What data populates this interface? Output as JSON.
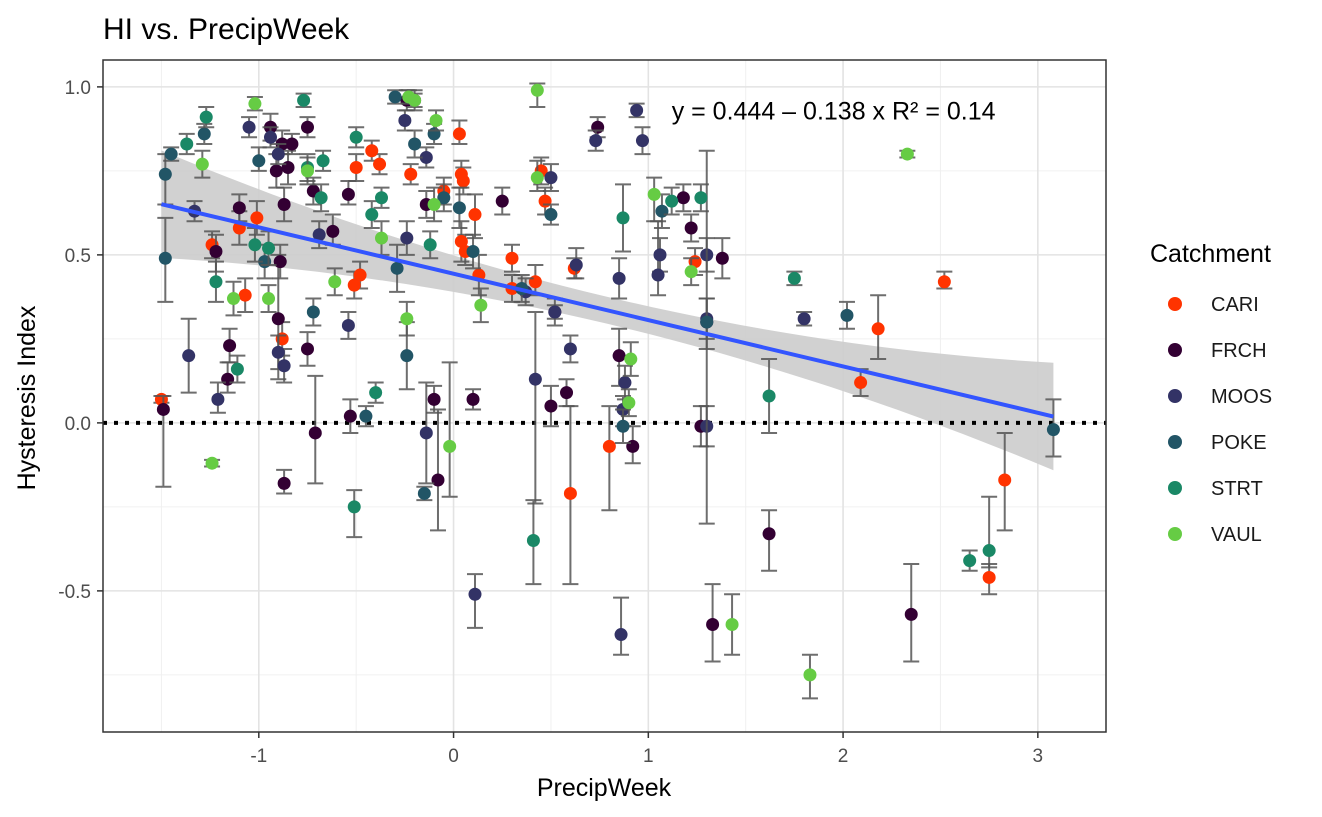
{
  "chart_data": {
    "type": "scatter",
    "title": "HI vs. PrecipWeek",
    "xlabel": "PrecipWeek",
    "ylabel": "Hysteresis Index",
    "xlim": [
      -1.8,
      3.35
    ],
    "ylim": [
      -0.92,
      1.08
    ],
    "x_ticks": [
      -1,
      0,
      1,
      2,
      3
    ],
    "x_tick_labels": [
      "-1",
      "0",
      "1",
      "2",
      "3"
    ],
    "y_ticks": [
      -0.5,
      0.0,
      0.5,
      1.0
    ],
    "y_tick_labels": [
      "-0.5",
      "0.0",
      "0.5",
      "1.0"
    ],
    "grid": true,
    "legend_position": "right",
    "legend_title": "Catchment",
    "reference_line": {
      "y": 0,
      "style": "dotted"
    },
    "regression": {
      "intercept": 0.444,
      "slope": -0.138,
      "x_range": [
        -1.5,
        3.08
      ],
      "band_halfwidth_ends": [
        0.16,
        0.16
      ],
      "band_halfwidth_center": 0.04,
      "color": "#3355ff",
      "band_color": "#cccccc",
      "equation_text": "y = 0.444 – 0.138 x",
      "r2_text": "R² = 0.14",
      "eq_anchor": {
        "x": 1.12,
        "y": 0.93
      }
    },
    "series": [
      {
        "name": "CARI",
        "color": "#ff3300",
        "points": [
          [
            -1.5,
            0.07,
            0.08,
            0.06
          ],
          [
            0.03,
            0.86,
            0.9,
            0.83
          ],
          [
            -0.5,
            0.76,
            0.8,
            0.72
          ],
          [
            -0.42,
            0.81,
            0.84,
            0.78
          ],
          [
            -0.38,
            0.77,
            0.8,
            0.74
          ],
          [
            -0.22,
            0.74,
            0.77,
            0.71
          ],
          [
            -0.05,
            0.69,
            0.73,
            0.65
          ],
          [
            0.04,
            0.74,
            0.78,
            0.7
          ],
          [
            0.05,
            0.72,
            0.76,
            0.68
          ],
          [
            0.11,
            0.62,
            0.68,
            0.55
          ],
          [
            0.04,
            0.54,
            0.6,
            0.48
          ],
          [
            0.06,
            0.51,
            0.56,
            0.47
          ],
          [
            0.13,
            0.44,
            0.5,
            0.38
          ],
          [
            -0.48,
            0.44,
            0.48,
            0.4
          ],
          [
            -0.51,
            0.41,
            0.45,
            0.37
          ],
          [
            -1.24,
            0.53,
            0.57,
            0.49
          ],
          [
            -1.1,
            0.58,
            0.63,
            0.53
          ],
          [
            -1.01,
            0.61,
            0.66,
            0.56
          ],
          [
            -1.07,
            0.38,
            0.43,
            0.33
          ],
          [
            -0.88,
            0.25,
            0.3,
            0.2
          ],
          [
            0.3,
            0.49,
            0.53,
            0.45
          ],
          [
            0.3,
            0.4,
            0.44,
            0.36
          ],
          [
            0.42,
            0.42,
            0.47,
            0.38
          ],
          [
            0.45,
            0.75,
            0.79,
            0.71
          ],
          [
            0.47,
            0.66,
            0.7,
            0.62
          ],
          [
            0.62,
            0.46,
            0.49,
            0.43
          ],
          [
            0.6,
            -0.21,
            0.05,
            -0.48
          ],
          [
            0.8,
            -0.07,
            0.05,
            -0.26
          ],
          [
            1.24,
            0.48,
            0.52,
            0.44
          ],
          [
            2.09,
            0.12,
            0.16,
            0.08
          ],
          [
            2.18,
            0.28,
            0.38,
            0.19
          ],
          [
            2.52,
            0.42,
            0.45,
            0.4
          ],
          [
            2.75,
            -0.46,
            -0.42,
            -0.51
          ],
          [
            2.83,
            -0.17,
            -0.03,
            -0.32
          ]
        ]
      },
      {
        "name": "FRCH",
        "color": "#330033",
        "points": [
          [
            -1.49,
            0.04,
            0.08,
            -0.19
          ],
          [
            -1.22,
            0.51,
            0.56,
            0.45
          ],
          [
            -1.15,
            0.23,
            0.28,
            0.18
          ],
          [
            -1.16,
            0.13,
            0.18,
            0.09
          ],
          [
            -1.1,
            0.64,
            0.68,
            0.6
          ],
          [
            -0.94,
            0.88,
            0.92,
            0.84
          ],
          [
            -0.88,
            0.83,
            0.87,
            0.8
          ],
          [
            -0.83,
            0.83,
            0.86,
            0.8
          ],
          [
            -0.9,
            0.31,
            0.5,
            0.13
          ],
          [
            -0.91,
            0.75,
            0.8,
            0.7
          ],
          [
            -0.85,
            0.76,
            0.81,
            0.71
          ],
          [
            -0.87,
            0.65,
            0.7,
            0.6
          ],
          [
            -0.89,
            0.48,
            0.53,
            0.43
          ],
          [
            -0.87,
            -0.18,
            -0.14,
            -0.21
          ],
          [
            -0.75,
            0.88,
            0.91,
            0.85
          ],
          [
            -0.72,
            0.69,
            0.73,
            0.65
          ],
          [
            -0.71,
            -0.03,
            0.14,
            -0.18
          ],
          [
            -0.75,
            0.22,
            0.27,
            0.17
          ],
          [
            -0.62,
            0.57,
            0.62,
            0.53
          ],
          [
            -0.54,
            0.68,
            0.72,
            0.65
          ],
          [
            -0.53,
            0.02,
            0.07,
            -0.03
          ],
          [
            -0.24,
            0.96,
            0.99,
            0.93
          ],
          [
            -0.2,
            0.96,
            0.99,
            0.93
          ],
          [
            -0.14,
            0.65,
            0.69,
            0.61
          ],
          [
            -0.1,
            0.07,
            0.11,
            0.03
          ],
          [
            -0.08,
            -0.17,
            0.04,
            -0.32
          ],
          [
            0.1,
            0.07,
            0.1,
            0.04
          ],
          [
            0.25,
            0.66,
            0.7,
            0.62
          ],
          [
            0.5,
            0.05,
            0.11,
            -0.01
          ],
          [
            0.52,
            0.33,
            0.37,
            0.29
          ],
          [
            0.58,
            0.09,
            0.13,
            0.05
          ],
          [
            0.74,
            0.88,
            0.91,
            0.85
          ],
          [
            0.85,
            0.2,
            0.28,
            0.11
          ],
          [
            0.92,
            -0.07,
            -0.01,
            -0.12
          ],
          [
            1.22,
            0.58,
            0.62,
            0.54
          ],
          [
            1.27,
            -0.01,
            0.05,
            -0.07
          ],
          [
            1.3,
            0.3,
            0.37,
            0.22
          ],
          [
            1.33,
            -0.6,
            -0.48,
            -0.71
          ],
          [
            1.38,
            0.49,
            0.55,
            0.43
          ],
          [
            1.62,
            -0.33,
            -0.26,
            -0.44
          ],
          [
            2.35,
            -0.57,
            -0.42,
            -0.71
          ],
          [
            1.18,
            0.67,
            0.71,
            0.63
          ]
        ]
      },
      {
        "name": "MOOS",
        "color": "#333366",
        "points": [
          [
            -1.33,
            0.63,
            0.66,
            0.6
          ],
          [
            -1.36,
            0.2,
            0.31,
            0.09
          ],
          [
            -1.21,
            0.07,
            0.12,
            0.03
          ],
          [
            -1.05,
            0.88,
            0.91,
            0.85
          ],
          [
            -0.94,
            0.85,
            0.88,
            0.82
          ],
          [
            -0.9,
            0.8,
            0.83,
            0.77
          ],
          [
            -0.9,
            0.21,
            0.26,
            0.16
          ],
          [
            -0.87,
            0.17,
            0.22,
            0.12
          ],
          [
            -0.69,
            0.56,
            0.6,
            0.52
          ],
          [
            -0.54,
            0.29,
            0.33,
            0.25
          ],
          [
            -0.25,
            0.9,
            0.93,
            0.87
          ],
          [
            -0.24,
            0.55,
            0.6,
            0.5
          ],
          [
            -0.14,
            0.79,
            0.82,
            0.76
          ],
          [
            -0.14,
            -0.03,
            0.12,
            -0.18
          ],
          [
            0.42,
            0.13,
            0.33,
            -0.24
          ],
          [
            0.5,
            0.73,
            0.77,
            0.69
          ],
          [
            0.37,
            0.39,
            0.43,
            0.35
          ],
          [
            0.11,
            -0.51,
            -0.45,
            -0.61
          ],
          [
            0.6,
            0.22,
            0.26,
            0.18
          ],
          [
            0.63,
            0.47,
            0.52,
            0.43
          ],
          [
            0.85,
            0.43,
            0.49,
            0.37
          ],
          [
            0.86,
            -0.63,
            -0.52,
            -0.69
          ],
          [
            0.88,
            0.12,
            0.17,
            0.07
          ],
          [
            0.87,
            0.04,
            0.08,
            -0.01
          ],
          [
            0.94,
            0.93,
            0.95,
            0.91
          ],
          [
            0.97,
            0.84,
            0.88,
            0.8
          ],
          [
            1.05,
            0.44,
            0.6,
            0.38
          ],
          [
            1.06,
            0.5,
            0.55,
            0.45
          ],
          [
            1.3,
            0.5,
            0.55,
            0.45
          ],
          [
            1.3,
            -0.01,
            0.05,
            -0.07
          ],
          [
            1.3,
            0.31,
            0.37,
            0.25
          ],
          [
            1.8,
            0.31,
            0.33,
            0.29
          ],
          [
            0.73,
            0.84,
            0.87,
            0.81
          ],
          [
            0.52,
            0.33,
            0.35,
            0.31
          ]
        ]
      },
      {
        "name": "POKE",
        "color": "#225566",
        "points": [
          [
            -1.48,
            0.74,
            0.8,
            0.65
          ],
          [
            -1.48,
            0.49,
            0.61,
            0.36
          ],
          [
            -1.45,
            0.8,
            0.82,
            0.78
          ],
          [
            -1.28,
            0.86,
            0.89,
            0.83
          ],
          [
            -1.0,
            0.78,
            0.82,
            0.75
          ],
          [
            -0.97,
            0.48,
            0.53,
            0.43
          ],
          [
            -0.72,
            0.33,
            0.37,
            0.29
          ],
          [
            -0.3,
            0.97,
            0.99,
            0.95
          ],
          [
            -0.29,
            0.46,
            0.53,
            0.39
          ],
          [
            -0.2,
            0.83,
            0.87,
            0.79
          ],
          [
            -0.24,
            0.2,
            0.3,
            0.1
          ],
          [
            -0.45,
            0.02,
            0.05,
            -0.01
          ],
          [
            -0.15,
            -0.21,
            -0.19,
            -0.23
          ],
          [
            -0.1,
            0.86,
            0.89,
            0.83
          ],
          [
            -0.05,
            0.67,
            0.71,
            0.63
          ],
          [
            0.03,
            0.64,
            0.7,
            0.58
          ],
          [
            0.1,
            0.51,
            0.56,
            0.46
          ],
          [
            0.35,
            0.4,
            0.44,
            0.36
          ],
          [
            0.5,
            0.62,
            0.65,
            0.59
          ],
          [
            0.87,
            -0.01,
            0.04,
            -0.06
          ],
          [
            1.07,
            0.63,
            0.68,
            0.58
          ],
          [
            1.3,
            0.3,
            0.81,
            -0.3
          ],
          [
            2.02,
            0.32,
            0.36,
            0.28
          ],
          [
            3.08,
            -0.02,
            0.07,
            -0.1
          ]
        ]
      },
      {
        "name": "STRT",
        "color": "#1a8866",
        "points": [
          [
            -1.37,
            0.83,
            0.86,
            0.8
          ],
          [
            -1.27,
            0.91,
            0.94,
            0.88
          ],
          [
            -1.22,
            0.42,
            0.48,
            0.36
          ],
          [
            -1.11,
            0.16,
            0.2,
            0.12
          ],
          [
            -1.02,
            0.53,
            0.58,
            0.48
          ],
          [
            -0.95,
            0.52,
            0.57,
            0.47
          ],
          [
            -0.77,
            0.96,
            0.98,
            0.94
          ],
          [
            -0.75,
            0.76,
            0.8,
            0.72
          ],
          [
            -0.67,
            0.78,
            0.81,
            0.75
          ],
          [
            -0.68,
            0.67,
            0.71,
            0.63
          ],
          [
            -0.5,
            0.85,
            0.88,
            0.82
          ],
          [
            -0.42,
            0.62,
            0.66,
            0.58
          ],
          [
            -0.37,
            0.67,
            0.7,
            0.64
          ],
          [
            -0.4,
            0.09,
            0.12,
            0.06
          ],
          [
            -0.51,
            -0.25,
            -0.2,
            -0.34
          ],
          [
            -0.12,
            0.53,
            0.57,
            0.49
          ],
          [
            0.41,
            -0.35,
            -0.23,
            -0.48
          ],
          [
            0.87,
            0.61,
            0.71,
            0.51
          ],
          [
            1.27,
            0.67,
            0.71,
            0.63
          ],
          [
            1.62,
            0.08,
            0.19,
            -0.03
          ],
          [
            1.75,
            0.43,
            0.45,
            0.41
          ],
          [
            2.65,
            -0.41,
            -0.38,
            -0.44
          ],
          [
            2.75,
            -0.38,
            -0.22,
            -0.43
          ],
          [
            1.12,
            0.66,
            0.7,
            0.62
          ]
        ]
      },
      {
        "name": "VAUL",
        "color": "#66cc44",
        "points": [
          [
            -1.24,
            -0.12,
            -0.11,
            -0.13
          ],
          [
            -1.02,
            0.95,
            0.97,
            0.93
          ],
          [
            -1.13,
            0.37,
            0.42,
            0.32
          ],
          [
            -0.95,
            0.37,
            0.41,
            0.33
          ],
          [
            -0.75,
            0.75,
            0.79,
            0.71
          ],
          [
            -0.61,
            0.42,
            0.46,
            0.38
          ],
          [
            -0.37,
            0.55,
            0.6,
            0.5
          ],
          [
            -0.23,
            0.97,
            0.99,
            0.95
          ],
          [
            -0.2,
            0.96,
            0.98,
            0.94
          ],
          [
            -0.24,
            0.31,
            0.36,
            0.26
          ],
          [
            -0.09,
            0.9,
            0.93,
            0.87
          ],
          [
            -0.1,
            0.65,
            0.7,
            0.6
          ],
          [
            -0.02,
            -0.07,
            0.18,
            -0.22
          ],
          [
            0.14,
            0.35,
            0.4,
            0.3
          ],
          [
            0.43,
            0.99,
            1.01,
            0.94
          ],
          [
            0.43,
            0.73,
            0.78,
            0.69
          ],
          [
            0.91,
            0.19,
            0.24,
            0.14
          ],
          [
            0.9,
            0.06,
            0.1,
            0.02
          ],
          [
            1.03,
            0.68,
            0.73,
            0.6
          ],
          [
            1.22,
            0.45,
            0.49,
            0.41
          ],
          [
            1.43,
            -0.6,
            -0.51,
            -0.69
          ],
          [
            1.83,
            -0.75,
            -0.69,
            -0.82
          ],
          [
            2.33,
            0.8,
            0.81,
            0.79
          ],
          [
            -1.29,
            0.77,
            0.81,
            0.73
          ]
        ]
      }
    ]
  }
}
